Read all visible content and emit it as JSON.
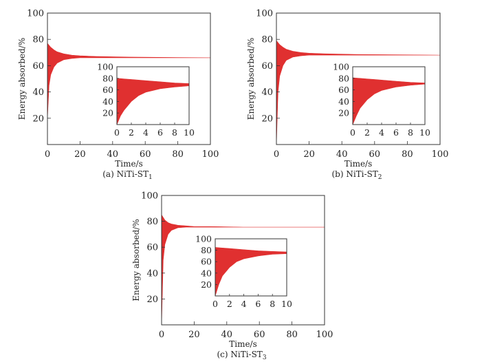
{
  "chart_data": [
    {
      "type": "area",
      "caption": "(a) NiTi-ST",
      "caption_sub": "1",
      "xlabel": "Time/s",
      "ylabel": "Energy absorbed/%",
      "xlim": [
        0,
        100
      ],
      "ylim": [
        0,
        100
      ],
      "xticks": [
        0,
        20,
        40,
        60,
        80,
        100
      ],
      "yticks": [
        20,
        40,
        60,
        80,
        100
      ],
      "color": "#e03030",
      "envelope": {
        "x": [
          0,
          1,
          2,
          4,
          6,
          10,
          15,
          20,
          30,
          50,
          100
        ],
        "upper": [
          77,
          75.5,
          74,
          72,
          70.5,
          69,
          68,
          67.5,
          67,
          66.5,
          66
        ],
        "lower": [
          20,
          45,
          53,
          59,
          62,
          64.5,
          65.5,
          66,
          66,
          66,
          66
        ]
      },
      "inset": {
        "xlim": [
          0,
          10
        ],
        "ylim": [
          0,
          100
        ],
        "xticks": [
          0,
          2,
          4,
          6,
          8,
          10
        ],
        "yticks": [
          20,
          40,
          60,
          80,
          100
        ],
        "x": [
          0,
          0.5,
          1,
          2,
          3,
          4,
          6,
          8,
          10
        ],
        "upper": [
          80,
          79.5,
          79,
          78,
          77,
          76,
          74,
          72,
          71
        ],
        "lower": [
          0,
          15,
          25,
          40,
          50,
          56,
          62,
          65,
          67
        ]
      }
    },
    {
      "type": "area",
      "caption": "(b) NiTi-ST",
      "caption_sub": "2",
      "xlabel": "Time/s",
      "ylabel": "Energy absorbed/%",
      "xlim": [
        0,
        100
      ],
      "ylim": [
        0,
        100
      ],
      "xticks": [
        0,
        20,
        40,
        60,
        80,
        100
      ],
      "yticks": [
        20,
        40,
        60,
        80,
        100
      ],
      "color": "#e03030",
      "envelope": {
        "x": [
          0,
          1,
          2,
          4,
          6,
          10,
          15,
          20,
          30,
          50,
          100
        ],
        "upper": [
          79,
          77.5,
          76,
          74,
          72.5,
          71,
          70,
          69.5,
          69,
          68.5,
          68
        ],
        "lower": [
          0,
          40,
          52,
          60,
          64,
          66.5,
          67.5,
          68,
          68,
          68,
          68
        ]
      },
      "inset": {
        "xlim": [
          0,
          10
        ],
        "ylim": [
          0,
          100
        ],
        "xticks": [
          0,
          2,
          4,
          6,
          8,
          10
        ],
        "yticks": [
          20,
          40,
          60,
          80,
          100
        ],
        "x": [
          0,
          0.5,
          1,
          2,
          3,
          4,
          6,
          8,
          10
        ],
        "upper": [
          81,
          80.5,
          80,
          79,
          78,
          77,
          75,
          73,
          72
        ],
        "lower": [
          0,
          15,
          28,
          43,
          53,
          59,
          65,
          68,
          70
        ]
      }
    },
    {
      "type": "area",
      "caption": "(c) NiTi-ST",
      "caption_sub": "3",
      "xlabel": "Time/s",
      "ylabel": "Energy absorbed/%",
      "xlim": [
        0,
        100
      ],
      "ylim": [
        0,
        100
      ],
      "xticks": [
        0,
        20,
        40,
        60,
        80,
        100
      ],
      "yticks": [
        20,
        40,
        60,
        80,
        100
      ],
      "color": "#e03030",
      "envelope": {
        "x": [
          0,
          1,
          2,
          4,
          6,
          10,
          15,
          20,
          30,
          50,
          100
        ],
        "upper": [
          85,
          83,
          81,
          79,
          78,
          77,
          76.5,
          76,
          76,
          75.5,
          75.5
        ],
        "lower": [
          0,
          50,
          62,
          70,
          73,
          75,
          75.5,
          75.5,
          75.5,
          75.5,
          75.5
        ]
      },
      "inset": {
        "xlim": [
          0,
          10
        ],
        "ylim": [
          0,
          100
        ],
        "xticks": [
          0,
          2,
          4,
          6,
          8,
          10
        ],
        "yticks": [
          20,
          40,
          60,
          80,
          100
        ],
        "x": [
          0,
          0.5,
          1,
          2,
          3,
          4,
          6,
          8,
          10
        ],
        "upper": [
          85,
          84.5,
          84,
          83,
          82,
          81,
          79,
          78,
          77
        ],
        "lower": [
          0,
          20,
          35,
          50,
          60,
          65,
          70,
          73,
          74
        ]
      }
    }
  ]
}
